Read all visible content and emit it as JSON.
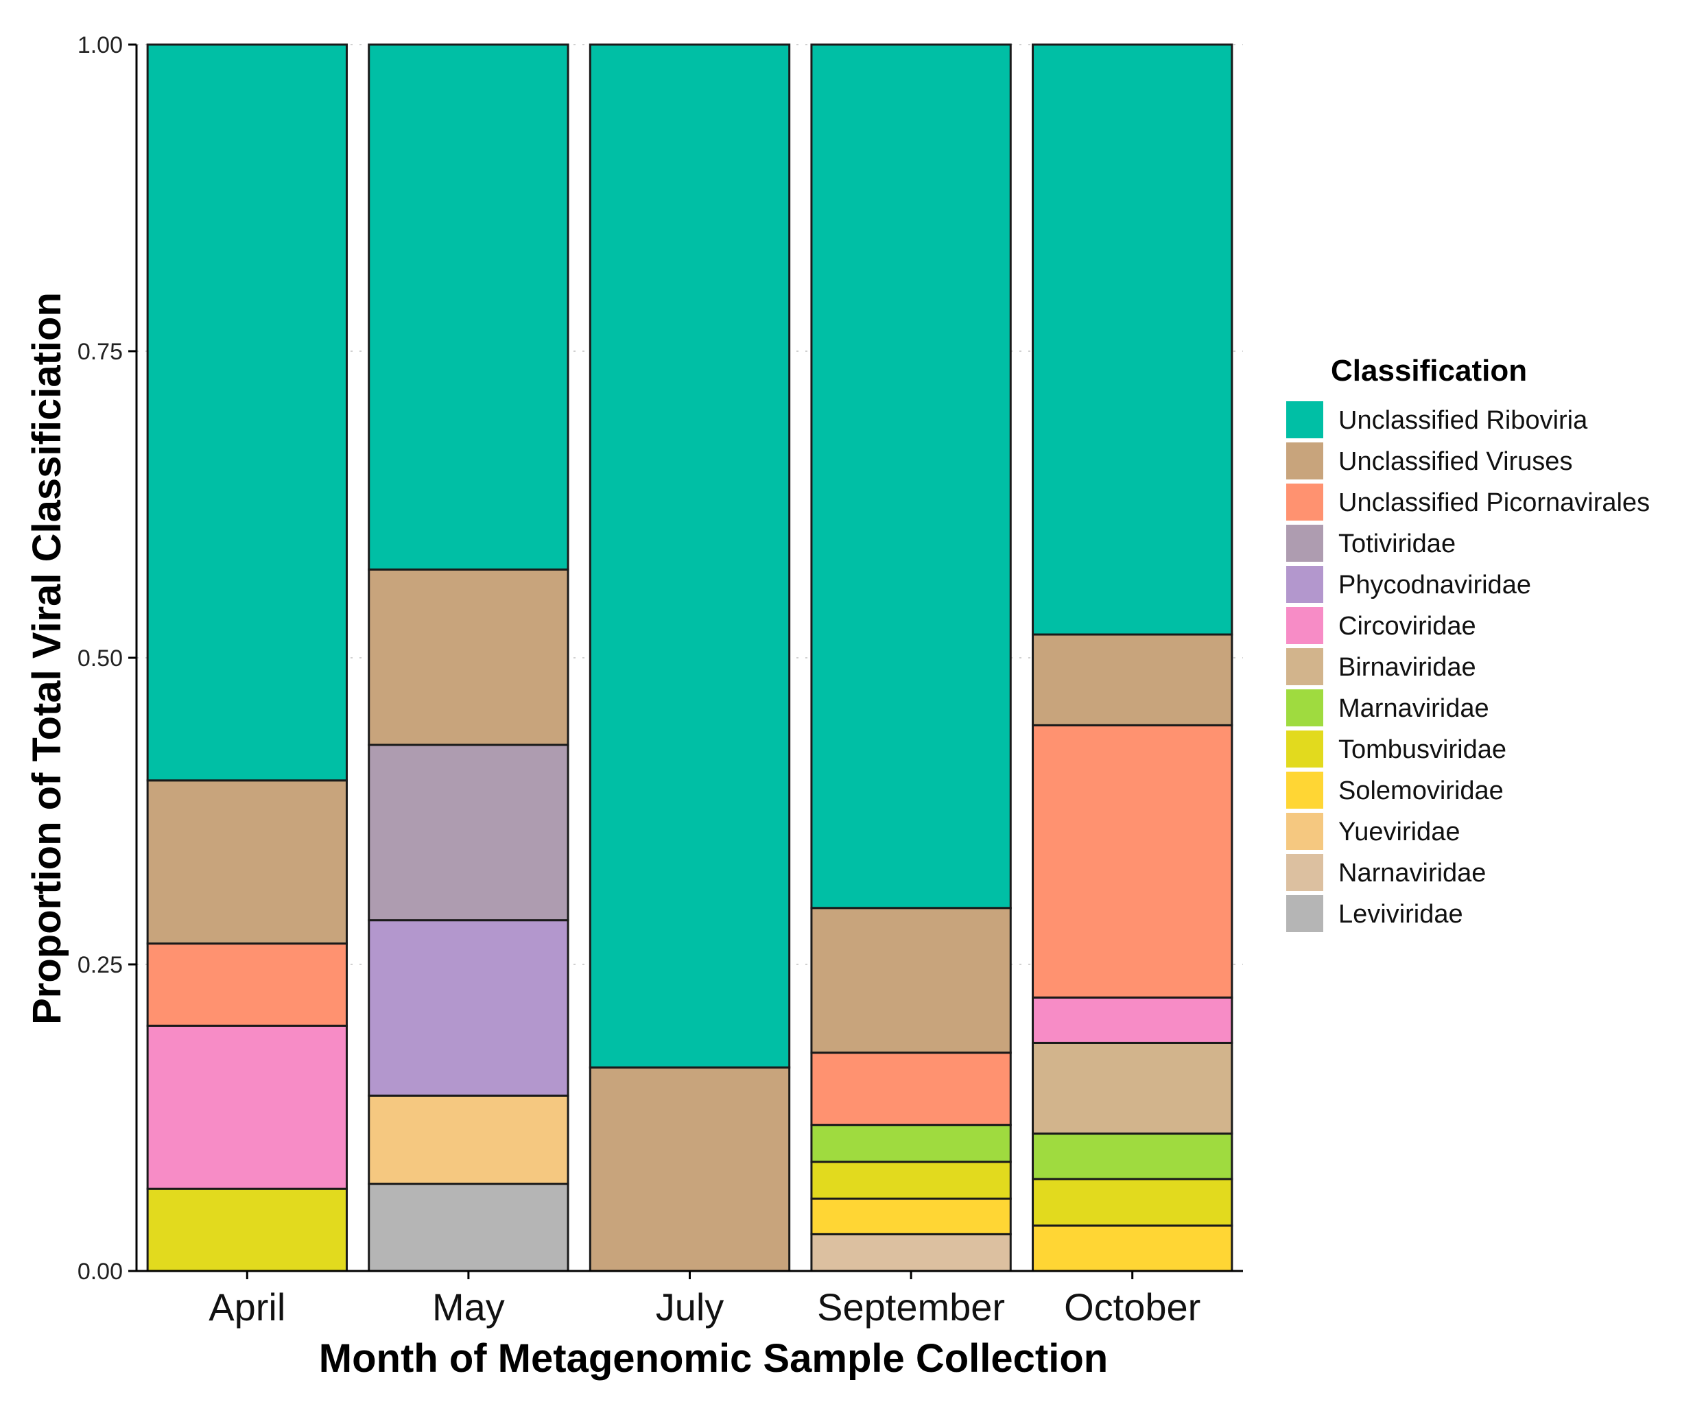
{
  "chart_data": {
    "type": "bar",
    "stacked": true,
    "normalized": true,
    "categories": [
      "April",
      "May",
      "July",
      "September",
      "October"
    ],
    "xlabel": "Month of Metagenomic Sample Collection",
    "ylabel": "Proportion of Total Viral Classificiation",
    "ylim": [
      0,
      1
    ],
    "y_ticks": [
      "0.00",
      "0.25",
      "0.50",
      "0.75",
      "1.00"
    ],
    "legend_title": "Classification",
    "legend_position": "right",
    "series": [
      {
        "name": "Unclassified Riboviria",
        "color": "#00BFA5",
        "values": [
          0.6,
          0.428,
          0.834,
          0.704,
          0.481
        ]
      },
      {
        "name": "Unclassified Viruses",
        "color": "#C8A47C",
        "values": [
          0.133,
          0.143,
          0.166,
          0.118,
          0.074
        ]
      },
      {
        "name": "Unclassified Picornavirales",
        "color": "#FF9270",
        "values": [
          0.067,
          0.0,
          0.0,
          0.059,
          0.222
        ]
      },
      {
        "name": "Totiviridae",
        "color": "#AE9CB0",
        "values": [
          0.0,
          0.143,
          0.0,
          0.0,
          0.0
        ]
      },
      {
        "name": "Phycodnaviridae",
        "color": "#B397CD",
        "values": [
          0.0,
          0.143,
          0.0,
          0.0,
          0.0
        ]
      },
      {
        "name": "Circoviridae",
        "color": "#F78CC6",
        "values": [
          0.133,
          0.0,
          0.0,
          0.0,
          0.037
        ]
      },
      {
        "name": "Birnaviridae",
        "color": "#D2B48C",
        "values": [
          0.0,
          0.0,
          0.0,
          0.0,
          0.074
        ]
      },
      {
        "name": "Marnaviridae",
        "color": "#9FDB3F",
        "values": [
          0.0,
          0.0,
          0.0,
          0.03,
          0.037
        ]
      },
      {
        "name": "Tombusviridae",
        "color": "#E2DA1E",
        "values": [
          0.067,
          0.0,
          0.0,
          0.03,
          0.038
        ]
      },
      {
        "name": "Solemoviridae",
        "color": "#FFD634",
        "values": [
          0.0,
          0.0,
          0.0,
          0.029,
          0.037
        ]
      },
      {
        "name": "Yueviridae",
        "color": "#F5C880",
        "values": [
          0.0,
          0.072,
          0.0,
          0.0,
          0.0
        ]
      },
      {
        "name": "Narnaviridae",
        "color": "#DCC0A0",
        "values": [
          0.0,
          0.0,
          0.0,
          0.03,
          0.0
        ]
      },
      {
        "name": "Leviviridae",
        "color": "#B5B5B5",
        "values": [
          0.0,
          0.071,
          0.0,
          0.0,
          0.0
        ]
      }
    ]
  }
}
